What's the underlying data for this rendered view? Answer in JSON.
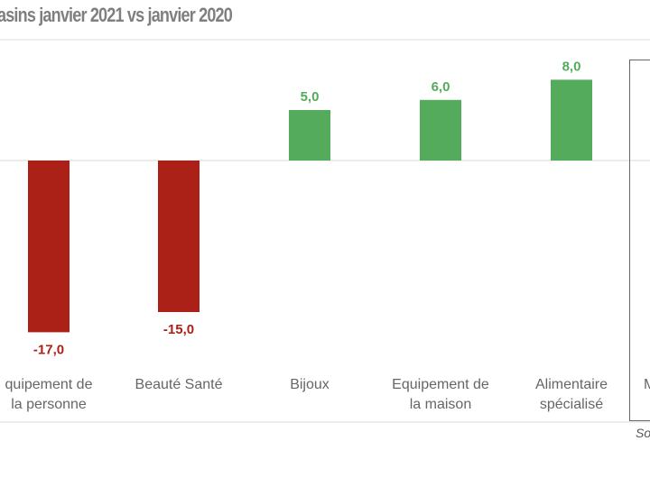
{
  "chart_data": {
    "type": "bar",
    "title": "asins janvier 2021 vs janvier 2020",
    "categories": [
      "Equipement de la personne",
      "Beauté Santé",
      "Bijoux",
      "Equipement de la maison",
      "Alimentaire spécialisé"
    ],
    "category_lines": [
      [
        "quipement de",
        "la personne"
      ],
      [
        "Beauté Santé"
      ],
      [
        "Bijoux"
      ],
      [
        "Equipement de",
        "la maison"
      ],
      [
        "Alimentaire",
        "spécialisé"
      ]
    ],
    "values": [
      -17.0,
      -15.0,
      5.0,
      6.0,
      8.0
    ],
    "data_labels": [
      "-17,0",
      "-15,0",
      "5,0",
      "6,0",
      "8,0"
    ],
    "partial_category_label": "M",
    "source_label": "So",
    "grid": false,
    "colors": {
      "negative": "#ab2118",
      "positive": "#53ab5b",
      "title": "#7f7f7f"
    }
  }
}
